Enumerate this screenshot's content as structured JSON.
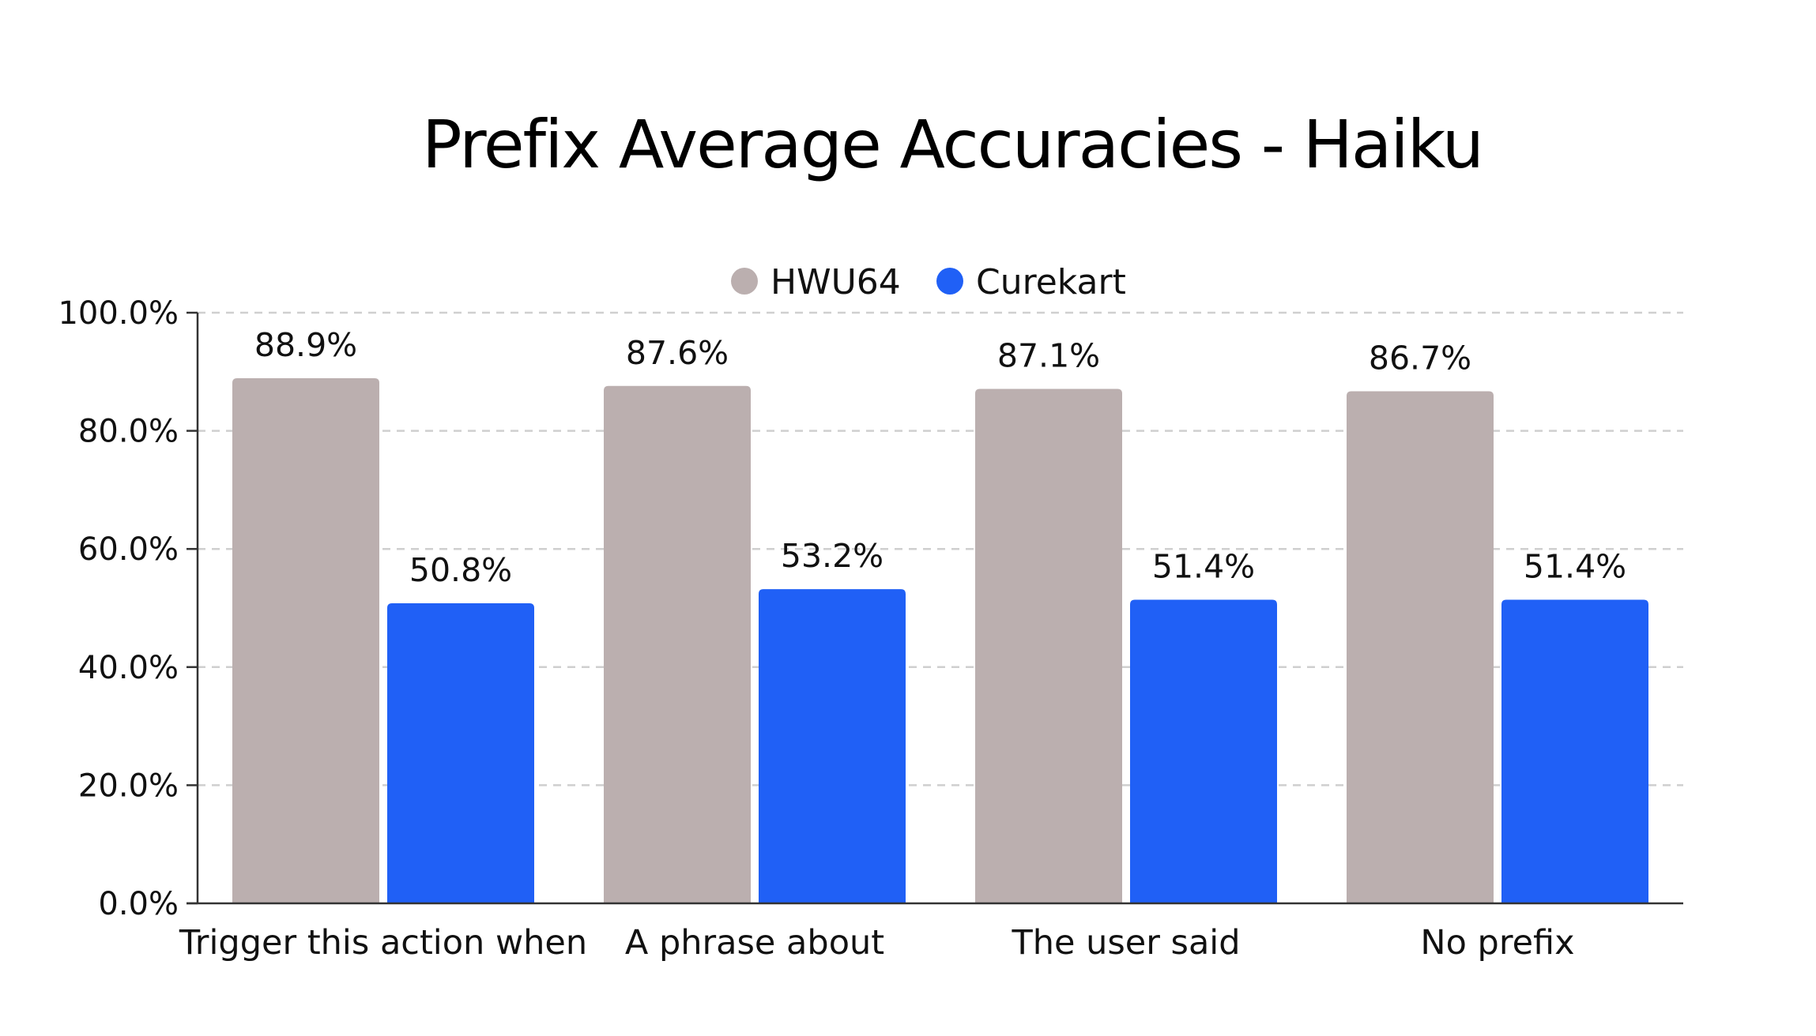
{
  "chart_data": {
    "type": "bar",
    "title": "Prefix Average Accuracies - Haiku",
    "categories": [
      "Trigger this action when",
      "A phrase about",
      "The user said",
      "No prefix"
    ],
    "series": [
      {
        "name": "HWU64",
        "color": "#bbafaf",
        "values": [
          88.9,
          87.6,
          87.1,
          86.7
        ],
        "labels": [
          "88.9%",
          "87.6%",
          "87.1%",
          "86.7%"
        ]
      },
      {
        "name": "Curekart",
        "color": "#2060f6",
        "values": [
          50.8,
          53.2,
          51.4,
          51.4
        ],
        "labels": [
          "50.8%",
          "53.2%",
          "51.4%",
          "51.4%"
        ]
      }
    ],
    "ylim": [
      0,
      100
    ],
    "yticks": [
      0,
      20,
      40,
      60,
      80,
      100
    ],
    "ytick_labels": [
      "0.0%",
      "20.0%",
      "40.0%",
      "60.0%",
      "80.0%",
      "100.0%"
    ],
    "xlabel": "",
    "ylabel": "",
    "grid": true,
    "legend_position": "top-center"
  }
}
